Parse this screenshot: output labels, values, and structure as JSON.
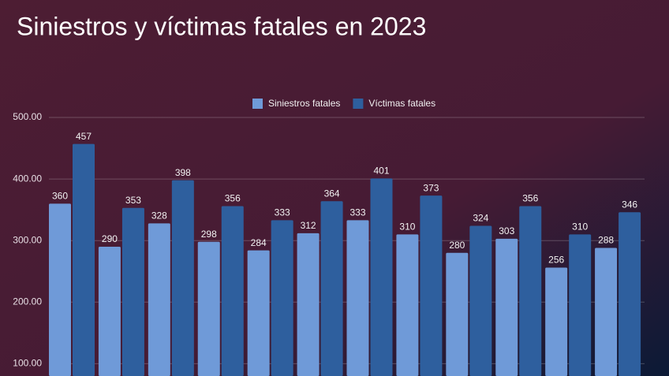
{
  "chart_data": {
    "type": "bar",
    "title": "Siniestros y víctimas fatales en 2023",
    "categories": [
      null,
      null,
      null,
      null,
      null,
      null,
      null,
      null,
      null,
      null,
      null,
      null
    ],
    "series": [
      {
        "name": "Siniestros fatales",
        "color": "#6f9ad8",
        "values": [
          360,
          290,
          328,
          298,
          284,
          312,
          333,
          310,
          280,
          303,
          256,
          288
        ]
      },
      {
        "name": "Víctimas fatales",
        "color": "#2e5f9e",
        "values": [
          457,
          353,
          398,
          356,
          333,
          364,
          401,
          373,
          324,
          356,
          310,
          346
        ]
      }
    ],
    "ylim": [
      80,
      500
    ],
    "yticks": [
      {
        "value": 100,
        "label": "100.00"
      },
      {
        "value": 200,
        "label": "200.00"
      },
      {
        "value": 300,
        "label": "300.00"
      },
      {
        "value": 400,
        "label": "400.00"
      },
      {
        "value": 500,
        "label": "500.00"
      }
    ],
    "grid": true,
    "legend": "top"
  }
}
